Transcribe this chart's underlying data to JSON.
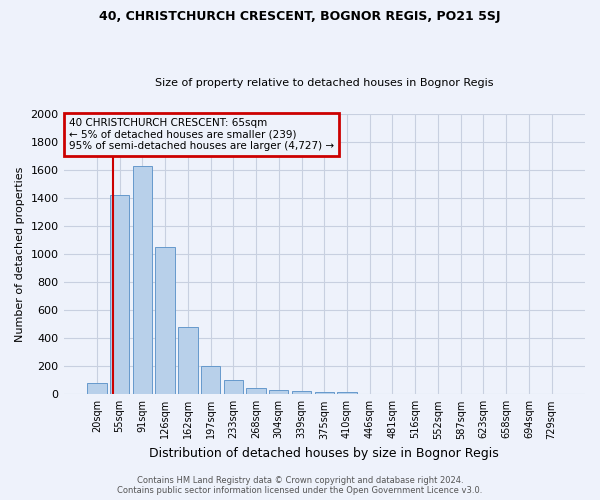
{
  "title": "40, CHRISTCHURCH CRESCENT, BOGNOR REGIS, PO21 5SJ",
  "subtitle": "Size of property relative to detached houses in Bognor Regis",
  "xlabel": "Distribution of detached houses by size in Bognor Regis",
  "ylabel": "Number of detached properties",
  "categories": [
    "20sqm",
    "55sqm",
    "91sqm",
    "126sqm",
    "162sqm",
    "197sqm",
    "233sqm",
    "268sqm",
    "304sqm",
    "339sqm",
    "375sqm",
    "410sqm",
    "446sqm",
    "481sqm",
    "516sqm",
    "552sqm",
    "587sqm",
    "623sqm",
    "658sqm",
    "694sqm",
    "729sqm"
  ],
  "values": [
    80,
    1420,
    1630,
    1050,
    480,
    205,
    100,
    42,
    30,
    22,
    15,
    18,
    0,
    0,
    0,
    0,
    0,
    0,
    0,
    0,
    0
  ],
  "bar_color": "#b8d0ea",
  "bar_edge_color": "#6699cc",
  "vline_color": "#cc0000",
  "vline_x": 0.72,
  "annotation_box_text": "40 CHRISTCHURCH CRESCENT: 65sqm\n← 5% of detached houses are smaller (239)\n95% of semi-detached houses are larger (4,727) →",
  "annotation_box_color": "#cc0000",
  "ylim": [
    0,
    2000
  ],
  "yticks": [
    0,
    200,
    400,
    600,
    800,
    1000,
    1200,
    1400,
    1600,
    1800,
    2000
  ],
  "footer_line1": "Contains HM Land Registry data © Crown copyright and database right 2024.",
  "footer_line2": "Contains public sector information licensed under the Open Government Licence v3.0.",
  "background_color": "#eef2fb",
  "grid_color": "#c8d0e0",
  "title_fontsize": 9,
  "subtitle_fontsize": 8,
  "ylabel_fontsize": 8,
  "xlabel_fontsize": 9,
  "ytick_fontsize": 8,
  "xtick_fontsize": 7,
  "annotation_fontsize": 7.5,
  "footer_fontsize": 6
}
